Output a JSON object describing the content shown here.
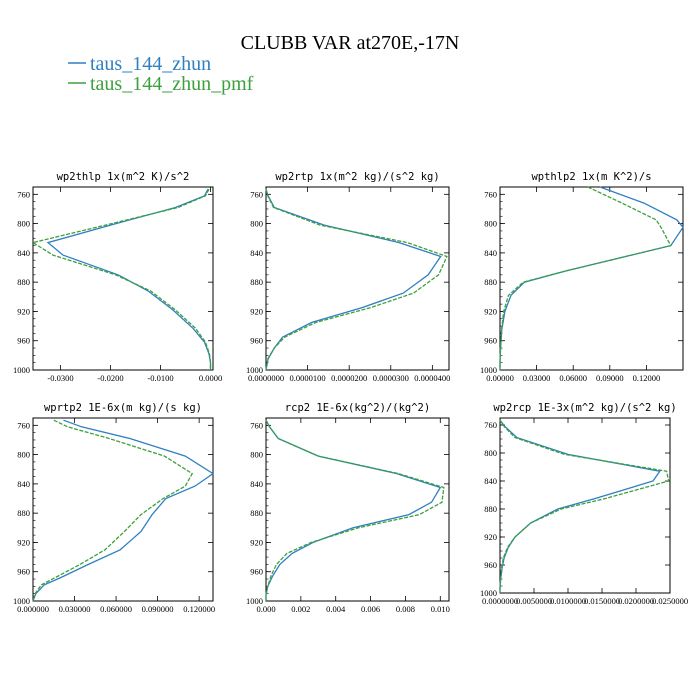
{
  "title": "CLUBB VAR at270E,-17N",
  "legend": [
    {
      "label": "taus_144_zhun",
      "color": "#2f7fc1"
    },
    {
      "label": "taus_144_zhun_pmf",
      "color": "#3ca03c"
    }
  ],
  "chart_data": [
    {
      "type": "line",
      "title": "wp2thlp  1x(m^2 K)/s^2",
      "xlim": [
        -0.0355,
        0.0005
      ],
      "ylim": [
        1000,
        750
      ],
      "xticks": [
        -0.03,
        -0.02,
        -0.01,
        0.0
      ],
      "xticklabels": [
        "-0.0300",
        "-0.0200",
        "-0.0100",
        "0.0000"
      ],
      "yticks": [
        760,
        800,
        840,
        880,
        920,
        960,
        1000
      ],
      "y": [
        753,
        762,
        778,
        802,
        826,
        843,
        870,
        892,
        918,
        943,
        962,
        978,
        990,
        1000
      ],
      "series": [
        {
          "name": "taus_144_zhun",
          "color": "#2f7fc1",
          "values": [
            -0.0005,
            -0.0012,
            -0.007,
            -0.02,
            -0.0325,
            -0.0295,
            -0.0185,
            -0.0125,
            -0.0075,
            -0.0035,
            -0.0012,
            -0.0003,
            0.0,
            0.0
          ]
        },
        {
          "name": "taus_144_zhun_pmf",
          "color": "#3ca03c",
          "values": [
            -0.0003,
            -0.001,
            -0.0065,
            -0.021,
            -0.0355,
            -0.0315,
            -0.019,
            -0.012,
            -0.007,
            -0.003,
            -0.001,
            -0.0002,
            0.0,
            0.0
          ]
        }
      ]
    },
    {
      "type": "line",
      "title": "wp2rtp  1x(m^2 kg)/(s^2 kg)",
      "xlim": [
        0.0,
        4.4e-05
      ],
      "ylim": [
        1000,
        750
      ],
      "xticks": [
        0.0,
        1e-05,
        2e-05,
        3e-05,
        4e-05
      ],
      "xticklabels": [
        "0.0000000",
        "0.0000100",
        "0.0000200",
        "0.0000300",
        "0.0000400"
      ],
      "yticks": [
        760,
        800,
        840,
        880,
        920,
        960,
        1000
      ],
      "y": [
        753,
        762,
        778,
        802,
        826,
        845,
        870,
        895,
        915,
        935,
        955,
        970,
        985,
        1000
      ],
      "series": [
        {
          "name": "taus_144_zhun",
          "color": "#2f7fc1",
          "values": [
            0.0,
            5e-07,
            2e-06,
            1.4e-05,
            3.2e-05,
            4.2e-05,
            3.9e-05,
            3.3e-05,
            2.3e-05,
            1.1e-05,
            4e-06,
            2e-06,
            5e-07,
            0.0
          ]
        },
        {
          "name": "taus_144_zhun_pmf",
          "color": "#3ca03c",
          "values": [
            0.0,
            4e-07,
            1.8e-06,
            1.3e-05,
            3.4e-05,
            4.35e-05,
            4.15e-05,
            3.55e-05,
            2.5e-05,
            1.2e-05,
            4.5e-06,
            2e-06,
            4e-07,
            0.0
          ]
        }
      ]
    },
    {
      "type": "line",
      "title": "wpthlp2  1x(m K^2)/s",
      "xlim": [
        0.0,
        0.15
      ],
      "ylim": [
        1000,
        750
      ],
      "xticks": [
        0.0,
        0.03,
        0.06,
        0.09,
        0.12
      ],
      "xticklabels": [
        "0.00000",
        "0.03000",
        "0.06000",
        "0.09000",
        "0.12000"
      ],
      "yticks": [
        760,
        800,
        840,
        880,
        920,
        960,
        1000
      ],
      "y": [
        750,
        772,
        795,
        805,
        830,
        865,
        880,
        898,
        920,
        945,
        970,
        990,
        1000
      ],
      "series": [
        {
          "name": "taus_144_zhun",
          "color": "#2f7fc1",
          "values": [
            0.082,
            0.118,
            0.145,
            0.15,
            0.14,
            0.053,
            0.02,
            0.009,
            0.004,
            0.0015,
            0.0005,
            0.0,
            0.0
          ]
        },
        {
          "name": "taus_144_zhun_pmf",
          "color": "#3ca03c",
          "values": [
            0.072,
            0.1,
            0.128,
            0.132,
            0.14,
            0.053,
            0.019,
            0.007,
            0.003,
            0.0012,
            0.0004,
            0.0,
            0.0
          ]
        }
      ]
    },
    {
      "type": "line",
      "title": "wprtp2  1E-6x(m kg)/(s kg)",
      "xlim": [
        0.0,
        0.13
      ],
      "ylim": [
        1000,
        750
      ],
      "xticks": [
        0.0,
        0.03,
        0.06,
        0.09,
        0.12
      ],
      "xticklabels": [
        "0.000000",
        "0.030000",
        "0.060000",
        "0.090000",
        "0.120000"
      ],
      "yticks": [
        760,
        800,
        840,
        880,
        920,
        960,
        1000
      ],
      "y": [
        753,
        762,
        778,
        802,
        826,
        843,
        860,
        882,
        905,
        930,
        950,
        968,
        978,
        990,
        1000
      ],
      "series": [
        {
          "name": "taus_144_zhun",
          "color": "#2f7fc1",
          "values": [
            0.022,
            0.035,
            0.07,
            0.11,
            0.13,
            0.117,
            0.096,
            0.086,
            0.078,
            0.063,
            0.04,
            0.02,
            0.008,
            0.002,
            0.0
          ]
        },
        {
          "name": "taus_144_zhun_pmf",
          "color": "#3ca03c",
          "values": [
            0.015,
            0.025,
            0.055,
            0.095,
            0.115,
            0.11,
            0.094,
            0.078,
            0.066,
            0.052,
            0.034,
            0.016,
            0.006,
            0.0015,
            0.0
          ]
        }
      ]
    },
    {
      "type": "line",
      "title": "rcp2  1E-6x(kg^2)/(kg^2)",
      "xlim": [
        0.0,
        0.0105
      ],
      "ylim": [
        1000,
        750
      ],
      "xticks": [
        0.0,
        0.002,
        0.004,
        0.006,
        0.008,
        0.01
      ],
      "xticklabels": [
        "0.000",
        "0.002",
        "0.004",
        "0.006",
        "0.008",
        "0.010"
      ],
      "yticks": [
        760,
        800,
        840,
        880,
        920,
        960,
        1000
      ],
      "y": [
        753,
        762,
        778,
        802,
        826,
        845,
        865,
        882,
        900,
        920,
        935,
        950,
        965,
        980,
        992,
        1000
      ],
      "series": [
        {
          "name": "taus_144_zhun",
          "color": "#2f7fc1",
          "values": [
            0.0,
            0.0002,
            0.0007,
            0.003,
            0.0075,
            0.01,
            0.0095,
            0.0082,
            0.005,
            0.0027,
            0.0015,
            0.0008,
            0.0004,
            0.0001,
            0.0,
            0.0
          ]
        },
        {
          "name": "taus_144_zhun_pmf",
          "color": "#3ca03c",
          "values": [
            0.0,
            0.0002,
            0.0007,
            0.003,
            0.0076,
            0.0102,
            0.0101,
            0.0088,
            0.0053,
            0.0026,
            0.0012,
            0.0006,
            0.0003,
            0.0001,
            0.0,
            0.0
          ]
        }
      ]
    },
    {
      "type": "line",
      "title": "wp2rcp  1E-3x(m^2 kg)/(s^2 kg)",
      "xlim": [
        0.0,
        0.025
      ],
      "ylim": [
        1000,
        750
      ],
      "xticks": [
        0.0,
        0.005,
        0.01,
        0.015,
        0.02,
        0.025
      ],
      "xticklabels": [
        "0.0000000",
        "0.0050000",
        "0.0100000",
        "0.0150000",
        "0.0200000",
        "0.0250000"
      ],
      "yticks": [
        760,
        800,
        840,
        880,
        920,
        960,
        1000
      ],
      "y": [
        753,
        762,
        778,
        802,
        826,
        840,
        865,
        880,
        900,
        920,
        935,
        950,
        965,
        980,
        992,
        1000
      ],
      "series": [
        {
          "name": "taus_144_zhun",
          "color": "#2f7fc1",
          "values": [
            0.0,
            0.0007,
            0.0025,
            0.01,
            0.0235,
            0.0225,
            0.014,
            0.0085,
            0.0045,
            0.0022,
            0.0012,
            0.0006,
            0.0003,
            0.0001,
            0.0,
            0.0
          ]
        },
        {
          "name": "taus_144_zhun_pmf",
          "color": "#3ca03c",
          "values": [
            0.0,
            0.0006,
            0.0022,
            0.0095,
            0.0245,
            0.0248,
            0.0155,
            0.009,
            0.0045,
            0.0022,
            0.0011,
            0.0005,
            0.0002,
            0.0001,
            0.0,
            0.0
          ]
        }
      ]
    }
  ]
}
